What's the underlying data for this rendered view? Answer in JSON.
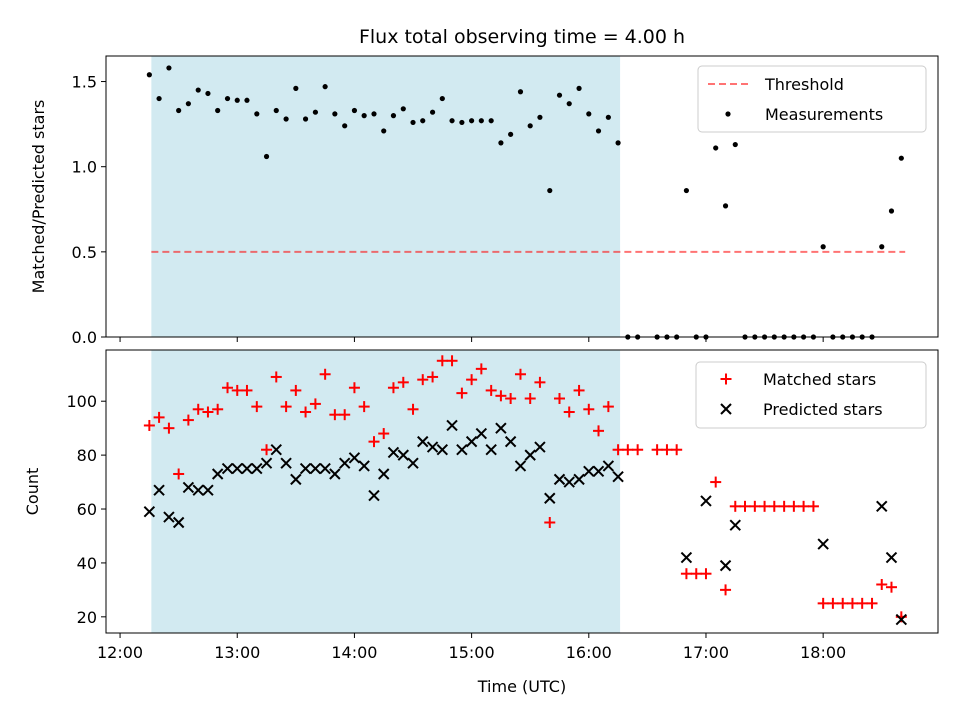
{
  "title": "Flux total observing time = 4.00 h",
  "colors": {
    "shade": "#add8e6",
    "threshold": "#ff0000",
    "measurement": "#000000",
    "matched": "#ff0000",
    "predicted": "#000000"
  },
  "chart_data": [
    {
      "type": "scatter",
      "panel": "top",
      "ylabel": "Matched/Predicted stars",
      "ylim": [
        0,
        1.65
      ],
      "yticks": [
        0.0,
        0.5,
        1.0,
        1.5
      ],
      "ytick_labels": [
        "0.0",
        "0.5",
        "1.0",
        "1.5"
      ],
      "xlim_hours": [
        11.88,
        18.98
      ],
      "shaded_region_hours": [
        12.267,
        16.267
      ],
      "legend": [
        "Threshold",
        "Measurements"
      ],
      "legend_position": "top-right",
      "threshold": {
        "name": "Threshold",
        "value": 0.5,
        "x_range_hours": [
          12.267,
          18.7
        ]
      },
      "series": [
        {
          "name": "Measurements",
          "x": [
            12.25,
            12.333,
            12.417,
            12.5,
            12.583,
            12.667,
            12.75,
            12.833,
            12.917,
            13.0,
            13.083,
            13.167,
            13.25,
            13.333,
            13.417,
            13.5,
            13.583,
            13.667,
            13.75,
            13.833,
            13.917,
            14.0,
            14.083,
            14.167,
            14.25,
            14.333,
            14.417,
            14.5,
            14.583,
            14.667,
            14.75,
            14.833,
            14.917,
            15.0,
            15.083,
            15.167,
            15.25,
            15.333,
            15.417,
            15.5,
            15.583,
            15.667,
            15.75,
            15.833,
            15.917,
            16.0,
            16.083,
            16.167,
            16.25,
            16.333,
            16.417,
            16.583,
            16.667,
            16.75,
            16.833,
            16.917,
            17.0,
            17.083,
            17.167,
            17.25,
            17.333,
            17.417,
            17.5,
            17.583,
            17.667,
            17.75,
            17.833,
            17.917,
            18.0,
            18.083,
            18.167,
            18.25,
            18.333,
            18.417,
            18.5,
            18.583,
            18.667
          ],
          "y": [
            1.54,
            1.4,
            1.58,
            1.33,
            1.37,
            1.45,
            1.43,
            1.33,
            1.4,
            1.39,
            1.39,
            1.31,
            1.06,
            1.33,
            1.28,
            1.46,
            1.28,
            1.32,
            1.47,
            1.31,
            1.24,
            1.33,
            1.3,
            1.31,
            1.21,
            1.3,
            1.34,
            1.26,
            1.27,
            1.32,
            1.4,
            1.27,
            1.26,
            1.27,
            1.27,
            1.27,
            1.14,
            1.19,
            1.44,
            1.24,
            1.29,
            0.86,
            1.42,
            1.37,
            1.46,
            1.31,
            1.21,
            1.29,
            1.14,
            0,
            0,
            0,
            0,
            0,
            0.86,
            0,
            0,
            1.11,
            0.77,
            1.13,
            0,
            0,
            0,
            0,
            0,
            0,
            0,
            0,
            0.53,
            0,
            0,
            0,
            0,
            0,
            0.53,
            0.74,
            1.05
          ]
        }
      ]
    },
    {
      "type": "scatter",
      "panel": "bottom",
      "xlabel": "Time (UTC)",
      "ylabel": "Count",
      "ylim": [
        14,
        119
      ],
      "yticks": [
        20,
        40,
        60,
        80,
        100
      ],
      "ytick_labels": [
        "20",
        "40",
        "60",
        "80",
        "100"
      ],
      "xlim_hours": [
        11.88,
        18.98
      ],
      "xticks_hours": [
        12,
        13,
        14,
        15,
        16,
        17,
        18
      ],
      "xtick_labels": [
        "12:00",
        "13:00",
        "14:00",
        "15:00",
        "16:00",
        "17:00",
        "18:00"
      ],
      "shaded_region_hours": [
        12.267,
        16.267
      ],
      "legend": [
        "Matched stars",
        "Predicted stars"
      ],
      "legend_position": "top-right",
      "series": [
        {
          "name": "Matched stars",
          "marker": "plus",
          "x": [
            12.25,
            12.333,
            12.417,
            12.5,
            12.583,
            12.667,
            12.75,
            12.833,
            12.917,
            13.0,
            13.083,
            13.167,
            13.25,
            13.333,
            13.417,
            13.5,
            13.583,
            13.667,
            13.75,
            13.833,
            13.917,
            14.0,
            14.083,
            14.167,
            14.25,
            14.333,
            14.417,
            14.5,
            14.583,
            14.667,
            14.75,
            14.833,
            14.917,
            15.0,
            15.083,
            15.167,
            15.25,
            15.333,
            15.417,
            15.5,
            15.583,
            15.667,
            15.75,
            15.833,
            15.917,
            16.0,
            16.083,
            16.167,
            16.25,
            16.333,
            16.417,
            16.583,
            16.667,
            16.75,
            16.833,
            16.917,
            17.0,
            17.083,
            17.167,
            17.25,
            17.333,
            17.417,
            17.5,
            17.583,
            17.667,
            17.75,
            17.833,
            17.917,
            18.0,
            18.083,
            18.167,
            18.25,
            18.333,
            18.417,
            18.5,
            18.583,
            18.667
          ],
          "y": [
            91,
            94,
            90,
            73,
            93,
            97,
            96,
            97,
            105,
            104,
            104,
            98,
            82,
            109,
            98,
            104,
            96,
            99,
            110,
            95,
            95,
            105,
            98,
            85,
            88,
            105,
            107,
            97,
            108,
            109,
            115,
            115,
            103,
            108,
            112,
            104,
            102,
            101,
            110,
            101,
            107,
            55,
            101,
            96,
            104,
            97,
            89,
            98,
            82,
            82,
            82,
            82,
            82,
            82,
            36,
            36,
            36,
            70,
            30,
            61,
            61,
            61,
            61,
            61,
            61,
            61,
            61,
            61,
            25,
            25,
            25,
            25,
            25,
            25,
            32,
            31,
            20
          ]
        },
        {
          "name": "Predicted stars",
          "marker": "x",
          "x": [
            12.25,
            12.333,
            12.417,
            12.5,
            12.583,
            12.667,
            12.75,
            12.833,
            12.917,
            13.0,
            13.083,
            13.167,
            13.25,
            13.333,
            13.417,
            13.5,
            13.583,
            13.667,
            13.75,
            13.833,
            13.917,
            14.0,
            14.083,
            14.167,
            14.25,
            14.333,
            14.417,
            14.5,
            14.583,
            14.667,
            14.75,
            14.833,
            14.917,
            15.0,
            15.083,
            15.167,
            15.25,
            15.333,
            15.417,
            15.5,
            15.583,
            15.667,
            15.75,
            15.833,
            15.917,
            16.0,
            16.083,
            16.167,
            16.25,
            16.833,
            17.0,
            17.167,
            17.25,
            18.0,
            18.5,
            18.583,
            18.667
          ],
          "y": [
            59,
            67,
            57,
            55,
            68,
            67,
            67,
            73,
            75,
            75,
            75,
            75,
            77,
            82,
            77,
            71,
            75,
            75,
            75,
            73,
            77,
            79,
            76,
            65,
            73,
            81,
            80,
            77,
            85,
            83,
            82,
            91,
            82,
            85,
            88,
            82,
            90,
            85,
            76,
            80,
            83,
            64,
            71,
            70,
            71,
            74,
            74,
            76,
            72,
            42,
            63,
            39,
            54,
            47,
            61,
            42,
            19
          ]
        }
      ]
    }
  ]
}
